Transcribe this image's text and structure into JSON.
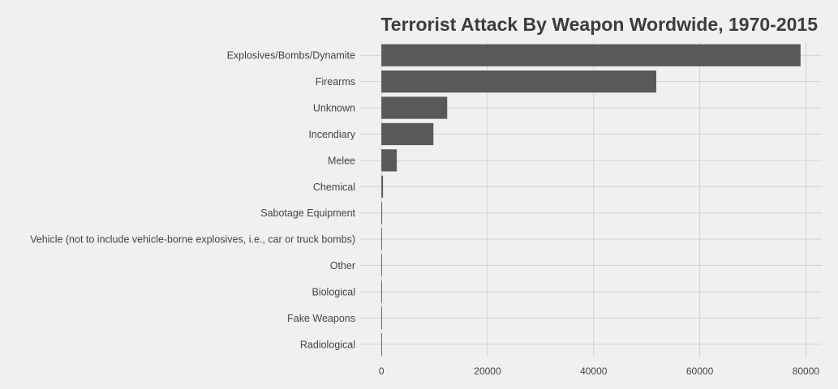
{
  "chart_data": {
    "type": "bar",
    "orientation": "horizontal",
    "title": "Terrorist Attack By Weapon Wordwide, 1970-2015",
    "xlabel": "",
    "ylabel": "",
    "categories": [
      "Explosives/Bombs/Dynamite",
      "Firearms",
      "Unknown",
      "Incendiary",
      "Melee",
      "Chemical",
      "Sabotage Equipment",
      "Vehicle (not to include vehicle-borne explosives, i.e., car or truck bombs)",
      "Other",
      "Biological",
      "Fake Weapons",
      "Radiological"
    ],
    "values": [
      79000,
      51800,
      12400,
      9800,
      2900,
      300,
      140,
      120,
      110,
      30,
      30,
      10
    ],
    "xlim": [
      -4000,
      83000
    ],
    "xticks": [
      0,
      20000,
      40000,
      60000,
      80000
    ],
    "xtick_labels": [
      "0",
      "20000",
      "40000",
      "60000",
      "80000"
    ],
    "grid": true,
    "legend": "none",
    "bar_color": "#595959",
    "background_color": "#f0f0f0",
    "grid_color": "#d2d2d2"
  }
}
